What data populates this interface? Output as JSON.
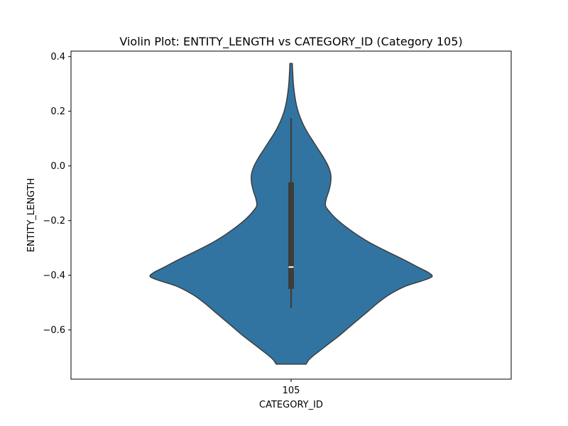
{
  "chart_data": {
    "type": "violin",
    "title": "Violin Plot: ENTITY_LENGTH vs CATEGORY_ID (Category 105)",
    "xlabel": "CATEGORY_ID",
    "ylabel": "ENTITY_LENGTH",
    "categories": [
      "105"
    ],
    "ylim": [
      -0.78,
      0.42
    ],
    "yticks": [
      -0.6,
      -0.4,
      -0.2,
      0.0,
      0.2,
      0.4
    ],
    "ytick_labels": [
      "−0.6",
      "−0.4",
      "−0.2",
      "0.0",
      "0.2",
      "0.4"
    ],
    "grid": false,
    "violins": [
      {
        "category": "105",
        "y_min": -0.725,
        "y_max": 0.375,
        "median": -0.37,
        "q1": -0.45,
        "q3": -0.06,
        "whisker_low": -0.52,
        "whisker_high": 0.175,
        "max_half_width": 0.5,
        "density_profile": [
          [
            -0.725,
            0.085
          ],
          [
            -0.71,
            0.1
          ],
          [
            -0.695,
            0.125
          ],
          [
            -0.675,
            0.165
          ],
          [
            -0.65,
            0.215
          ],
          [
            -0.62,
            0.275
          ],
          [
            -0.59,
            0.33
          ],
          [
            -0.56,
            0.385
          ],
          [
            -0.53,
            0.44
          ],
          [
            -0.5,
            0.495
          ],
          [
            -0.47,
            0.56
          ],
          [
            -0.44,
            0.65
          ],
          [
            -0.42,
            0.745
          ],
          [
            -0.405,
            0.8
          ],
          [
            -0.39,
            0.78
          ],
          [
            -0.37,
            0.72
          ],
          [
            -0.34,
            0.63
          ],
          [
            -0.31,
            0.535
          ],
          [
            -0.28,
            0.445
          ],
          [
            -0.25,
            0.37
          ],
          [
            -0.22,
            0.305
          ],
          [
            -0.19,
            0.25
          ],
          [
            -0.165,
            0.215
          ],
          [
            -0.145,
            0.195
          ],
          [
            -0.12,
            0.2
          ],
          [
            -0.09,
            0.215
          ],
          [
            -0.06,
            0.225
          ],
          [
            -0.03,
            0.225
          ],
          [
            0.0,
            0.21
          ],
          [
            0.03,
            0.185
          ],
          [
            0.06,
            0.155
          ],
          [
            0.09,
            0.125
          ],
          [
            0.12,
            0.095
          ],
          [
            0.15,
            0.07
          ],
          [
            0.18,
            0.05
          ],
          [
            0.21,
            0.035
          ],
          [
            0.24,
            0.025
          ],
          [
            0.27,
            0.018
          ],
          [
            0.3,
            0.013
          ],
          [
            0.33,
            0.01
          ],
          [
            0.355,
            0.008
          ],
          [
            0.375,
            0.007
          ]
        ]
      }
    ],
    "colors": {
      "violin_fill": "#3274a1",
      "violin_edge": "#3d3d3d",
      "box": "#3d3d3d",
      "median": "#ffffff",
      "axes": "#000000"
    }
  }
}
